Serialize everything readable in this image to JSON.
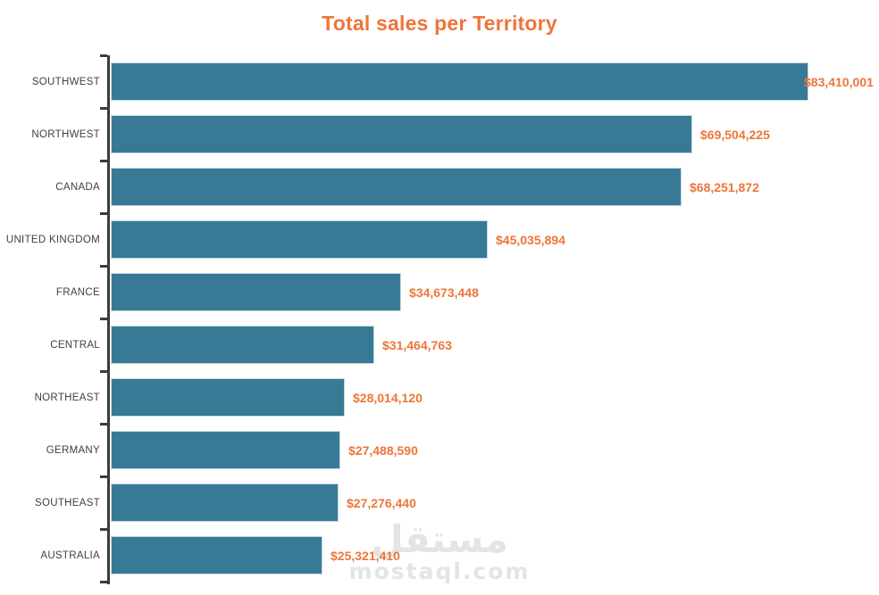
{
  "title": "Total sales per Territory",
  "watermark": {
    "arabic": "مستقل",
    "latin": "mostaql.com"
  },
  "colors": {
    "accent": "#ED7539",
    "bar": "#387A96",
    "bar_edge": "#C6DAE5",
    "axis": "#3B3B3B",
    "category_text": "#404040",
    "watermark": "#E4E4E4"
  },
  "chart_data": {
    "type": "bar",
    "orientation": "horizontal",
    "title": "Total sales per Territory",
    "xlabel": "",
    "ylabel": "",
    "grid": false,
    "legend": null,
    "xlim": [
      0,
      83410001
    ],
    "categories": [
      "SOUTHWEST",
      "NORTHWEST",
      "CANADA",
      "UNITED KINGDOM",
      "FRANCE",
      "CENTRAL",
      "NORTHEAST",
      "GERMANY",
      "SOUTHEAST",
      "AUSTRALIA"
    ],
    "values": [
      83410001,
      69504225,
      68251872,
      45035894,
      34673448,
      31464763,
      28014120,
      27488590,
      27276440,
      25321410
    ],
    "value_labels": [
      "$83,410,001",
      "$69,504,225",
      "$68,251,872",
      "$45,035,894",
      "$34,673,448",
      "$31,464,763",
      "$28,014,120",
      "$27,488,590",
      "$27,276,440",
      "$25,321,410"
    ]
  }
}
